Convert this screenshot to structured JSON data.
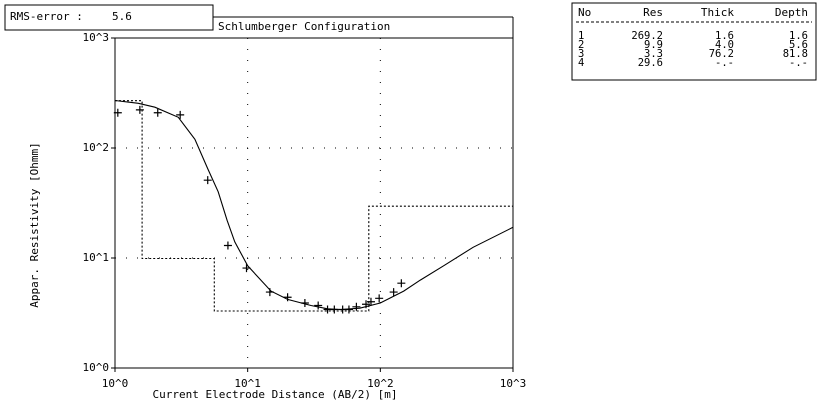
{
  "rms_error": {
    "label": "RMS-error :",
    "value": "5.6"
  },
  "chart_data": {
    "type": "line",
    "title": "Schlumberger Configuration",
    "x_label": "Current Electrode Distance (AB/2) [m]",
    "y_label": "Appar. Resistivity [Ohmm]",
    "xscale": "log",
    "yscale": "log",
    "grid": true,
    "xlim": [
      1,
      1000
    ],
    "ylim": [
      1,
      1000
    ],
    "xticks": [
      {
        "value": 1,
        "label": "10^0"
      },
      {
        "value": 10,
        "label": "10^1"
      },
      {
        "value": 100,
        "label": "10^2"
      },
      {
        "value": 1000,
        "label": "10^3"
      }
    ],
    "yticks": [
      {
        "value": 1,
        "label": "10^0"
      },
      {
        "value": 10,
        "label": "10^1"
      },
      {
        "value": 100,
        "label": "10^2"
      },
      {
        "value": 1000,
        "label": "10^3"
      }
    ],
    "series": [
      {
        "color": "#000000",
        "marker": "+",
        "line_style": "none",
        "x": [
          1.05,
          1.54,
          2.1,
          3.1,
          5.0,
          7.1,
          9.8,
          14.7,
          20,
          27,
          34,
          40,
          45,
          52,
          58,
          66,
          78,
          85,
          98,
          126,
          144
        ],
        "values": [
          209,
          222,
          209,
          200,
          51,
          13,
          8.1,
          4.9,
          4.4,
          3.9,
          3.7,
          3.4,
          3.4,
          3.4,
          3.4,
          3.6,
          3.8,
          4.0,
          4.3,
          4.9,
          5.9
        ]
      },
      {
        "color": "#000000",
        "line_style": "solid",
        "x": [
          1,
          1.5,
          2,
          3,
          4,
          5,
          6,
          7,
          8,
          10,
          15,
          20,
          30,
          40,
          50,
          70,
          100,
          150,
          200,
          300,
          500,
          1000
        ],
        "values": [
          270,
          255,
          235,
          190,
          120,
          65,
          40,
          22,
          14,
          8.5,
          5,
          4.2,
          3.7,
          3.45,
          3.4,
          3.5,
          3.9,
          5,
          6.3,
          8.5,
          12.5,
          19
        ]
      },
      {
        "color": "#000000",
        "line_style": "dotted",
        "x": [
          1,
          1.6,
          1.6,
          5.6,
          5.6,
          81.8,
          81.8,
          1000
        ],
        "values": [
          269.2,
          269.2,
          9.9,
          9.9,
          3.3,
          3.3,
          29.6,
          29.6
        ]
      }
    ]
  },
  "table": {
    "headers": [
      "No",
      "Res",
      "Thick",
      "Depth"
    ],
    "rows": [
      [
        "1",
        "269.2",
        "1.6",
        "1.6"
      ],
      [
        "2",
        "9.9",
        "4.0",
        "5.6"
      ],
      [
        "3",
        "3.3",
        "76.2",
        "81.8"
      ],
      [
        "4",
        "29.6",
        "-.-",
        "-.-"
      ]
    ]
  }
}
